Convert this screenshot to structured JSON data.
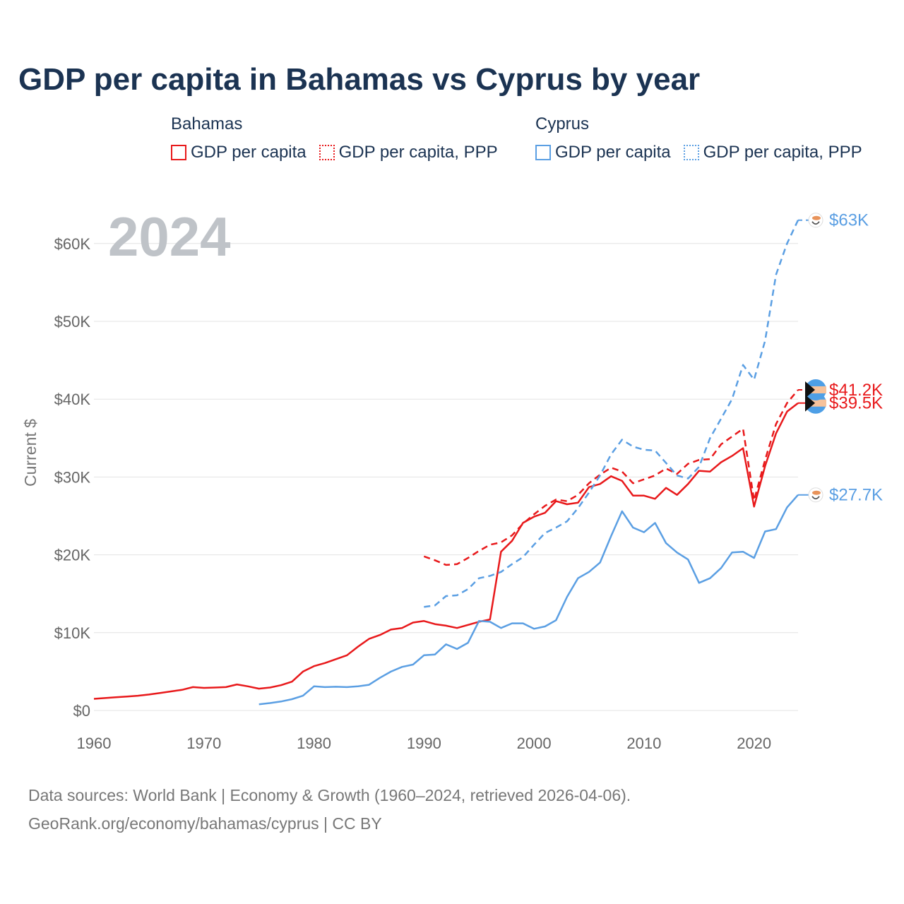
{
  "title": "GDP per capita in Bahamas vs Cyprus by year",
  "legend": {
    "groups": [
      {
        "name": "Bahamas",
        "items": [
          {
            "label": "GDP per capita",
            "color": "#e8191b",
            "style": "solid"
          },
          {
            "label": "GDP per capita, PPP",
            "color": "#e8191b",
            "style": "dashed"
          }
        ]
      },
      {
        "name": "Cyprus",
        "items": [
          {
            "label": "GDP per capita",
            "color": "#5b9fe3",
            "style": "solid"
          },
          {
            "label": "GDP per capita, PPP",
            "color": "#5b9fe3",
            "style": "dashed"
          }
        ]
      }
    ]
  },
  "sources": {
    "line1": "Data sources: World Bank | Economy & Growth (1960–2024, retrieved 2026-04-06).",
    "line2": "GeoRank.org/economy/bahamas/cyprus | CC BY"
  },
  "chart_data": {
    "type": "line",
    "title": "GDP per capita in Bahamas vs Cyprus by year",
    "year_label": "2024",
    "xlabel": "",
    "ylabel": "Current $",
    "xlim": [
      1960,
      2024
    ],
    "ylim": [
      0,
      63000
    ],
    "x_ticks": [
      1960,
      1970,
      1980,
      1990,
      2000,
      2010,
      2020
    ],
    "x_tick_labels": [
      "1960",
      "1970",
      "1980",
      "1990",
      "2000",
      "2010",
      "2020"
    ],
    "y_ticks": [
      0,
      10000,
      20000,
      30000,
      40000,
      50000,
      60000
    ],
    "y_tick_labels": [
      "$0",
      "$10K",
      "$20K",
      "$30K",
      "$40K",
      "$50K",
      "$60K"
    ],
    "grid": true,
    "series": [
      {
        "name": "Bahamas GDP per capita",
        "country": "Bahamas",
        "color": "#e8191b",
        "dash": "solid",
        "end_label": "$39.5K",
        "x": [
          1960,
          1961,
          1962,
          1963,
          1964,
          1965,
          1966,
          1967,
          1968,
          1969,
          1970,
          1971,
          1972,
          1973,
          1974,
          1975,
          1976,
          1977,
          1978,
          1979,
          1980,
          1981,
          1982,
          1983,
          1984,
          1985,
          1986,
          1987,
          1988,
          1989,
          1990,
          1991,
          1992,
          1993,
          1994,
          1995,
          1996,
          1997,
          1998,
          1999,
          2000,
          2001,
          2002,
          2003,
          2004,
          2005,
          2006,
          2007,
          2008,
          2009,
          2010,
          2011,
          2012,
          2013,
          2014,
          2015,
          2016,
          2017,
          2018,
          2019,
          2020,
          2021,
          2022,
          2023,
          2024
        ],
        "values": [
          1500,
          1600,
          1700,
          1800,
          1900,
          2050,
          2250,
          2450,
          2650,
          3000,
          2900,
          2950,
          3000,
          3350,
          3100,
          2800,
          2950,
          3250,
          3700,
          5000,
          5700,
          6100,
          6600,
          7100,
          8200,
          9200,
          9700,
          10400,
          10600,
          11300,
          11500,
          11100,
          10900,
          10600,
          11000,
          11400,
          11700,
          20400,
          21800,
          24100,
          24900,
          25400,
          26900,
          26500,
          26700,
          28700,
          29100,
          30100,
          29500,
          27600,
          27600,
          27200,
          28600,
          27700,
          29100,
          30800,
          30700,
          31900,
          32700,
          33700,
          26200,
          31400,
          35600,
          38400,
          39500
        ]
      },
      {
        "name": "Bahamas GDP per capita, PPP",
        "country": "Bahamas",
        "color": "#e8191b",
        "dash": "dashed",
        "end_label": "$41.2K",
        "x": [
          1990,
          1991,
          1992,
          1993,
          1994,
          1995,
          1996,
          1997,
          1998,
          1999,
          2000,
          2001,
          2002,
          2003,
          2004,
          2005,
          2006,
          2007,
          2008,
          2009,
          2010,
          2011,
          2012,
          2013,
          2014,
          2015,
          2016,
          2017,
          2018,
          2019,
          2020,
          2021,
          2022,
          2023,
          2024
        ],
        "values": [
          19800,
          19300,
          18700,
          18800,
          19600,
          20500,
          21300,
          21600,
          22500,
          24000,
          25200,
          26300,
          27100,
          26900,
          27700,
          29200,
          30300,
          31200,
          30700,
          29200,
          29700,
          30200,
          31100,
          30400,
          31700,
          32200,
          32300,
          34200,
          35200,
          36200,
          27000,
          32200,
          36800,
          39500,
          41200
        ]
      },
      {
        "name": "Cyprus GDP per capita",
        "country": "Cyprus",
        "color": "#5b9fe3",
        "dash": "solid",
        "end_label": "$27.7K",
        "x": [
          1975,
          1976,
          1977,
          1978,
          1979,
          1980,
          1981,
          1982,
          1983,
          1984,
          1985,
          1986,
          1987,
          1988,
          1989,
          1990,
          1991,
          1992,
          1993,
          1994,
          1995,
          1996,
          1997,
          1998,
          1999,
          2000,
          2001,
          2002,
          2003,
          2004,
          2005,
          2006,
          2007,
          2008,
          2009,
          2010,
          2011,
          2012,
          2013,
          2014,
          2015,
          2016,
          2017,
          2018,
          2019,
          2020,
          2021,
          2022,
          2023,
          2024
        ],
        "values": [
          800,
          950,
          1150,
          1450,
          1900,
          3100,
          3000,
          3050,
          3000,
          3100,
          3300,
          4200,
          5000,
          5600,
          5900,
          7100,
          7200,
          8500,
          7900,
          8700,
          11500,
          11400,
          10600,
          11200,
          11200,
          10500,
          10800,
          11600,
          14600,
          17000,
          17800,
          19000,
          22400,
          25600,
          23500,
          22900,
          24100,
          21500,
          20300,
          19400,
          16400,
          17000,
          18300,
          20300,
          20400,
          19600,
          23000,
          23300,
          26100,
          27700
        ]
      },
      {
        "name": "Cyprus GDP per capita, PPP",
        "country": "Cyprus",
        "color": "#5b9fe3",
        "dash": "dashed",
        "end_label": "$63K",
        "x": [
          1990,
          1991,
          1992,
          1993,
          1994,
          1995,
          1996,
          1997,
          1998,
          1999,
          2000,
          2001,
          2002,
          2003,
          2004,
          2005,
          2006,
          2007,
          2008,
          2009,
          2010,
          2011,
          2012,
          2013,
          2014,
          2015,
          2016,
          2017,
          2018,
          2019,
          2020,
          2021,
          2022,
          2023,
          2024
        ],
        "values": [
          13300,
          13500,
          14700,
          14800,
          15600,
          17000,
          17300,
          17800,
          18800,
          19700,
          21300,
          22800,
          23500,
          24300,
          26000,
          28000,
          30200,
          32900,
          34800,
          33900,
          33500,
          33400,
          31800,
          30200,
          29800,
          31300,
          35000,
          37500,
          40000,
          44400,
          42500,
          47500,
          56000,
          60000,
          63000
        ]
      }
    ]
  }
}
